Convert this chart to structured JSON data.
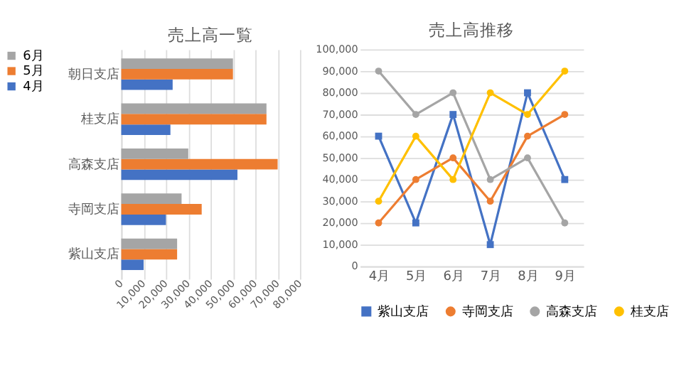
{
  "chart_data": [
    {
      "type": "bar",
      "orientation": "horizontal",
      "title": "売上高一覧",
      "categories": [
        "朝日支店",
        "桂支店",
        "高森支店",
        "寺岡支店",
        "紫山支店"
      ],
      "series": [
        {
          "name": "4月",
          "color": "#4472c4",
          "values": [
            23000,
            22000,
            52000,
            20000,
            10000
          ]
        },
        {
          "name": "5月",
          "color": "#ed7d31",
          "values": [
            50000,
            65000,
            70000,
            36000,
            25000
          ]
        },
        {
          "name": "6月",
          "color": "#a5a5a5",
          "values": [
            50000,
            65000,
            30000,
            27000,
            25000
          ]
        }
      ],
      "xlim": [
        0,
        80000
      ],
      "xticks": [
        {
          "value": 0,
          "label": "0"
        },
        {
          "value": 10000,
          "label": "10,000"
        },
        {
          "value": 20000,
          "label": "20,000"
        },
        {
          "value": 30000,
          "label": "30,000"
        },
        {
          "value": 40000,
          "label": "40,000"
        },
        {
          "value": 50000,
          "label": "50,000"
        },
        {
          "value": 60000,
          "label": "60,000"
        },
        {
          "value": 70000,
          "label": "70,000"
        },
        {
          "value": 80000,
          "label": "80,000"
        }
      ],
      "grid": "x",
      "legend": "left"
    },
    {
      "type": "line",
      "title": "売上高推移",
      "categories": [
        "4月",
        "5月",
        "6月",
        "7月",
        "8月",
        "9月"
      ],
      "series": [
        {
          "name": "紫山支店",
          "color": "#4472c4",
          "marker": "square",
          "values": [
            60000,
            20000,
            70000,
            10000,
            80000,
            40000
          ]
        },
        {
          "name": "寺岡支店",
          "color": "#ed7d31",
          "marker": "circle",
          "values": [
            20000,
            40000,
            50000,
            30000,
            60000,
            70000
          ]
        },
        {
          "name": "高森支店",
          "color": "#a5a5a5",
          "marker": "circle",
          "values": [
            90000,
            70000,
            80000,
            40000,
            50000,
            20000
          ]
        },
        {
          "name": "桂支店",
          "color": "#ffc000",
          "marker": "circle",
          "values": [
            30000,
            60000,
            40000,
            80000,
            70000,
            90000
          ]
        }
      ],
      "ylim": [
        0,
        100000
      ],
      "yticks": [
        {
          "value": 0,
          "label": "0"
        },
        {
          "value": 10000,
          "label": "10,000"
        },
        {
          "value": 20000,
          "label": "20,000"
        },
        {
          "value": 30000,
          "label": "30,000"
        },
        {
          "value": 40000,
          "label": "40,000"
        },
        {
          "value": 50000,
          "label": "50,000"
        },
        {
          "value": 60000,
          "label": "60,000"
        },
        {
          "value": 70000,
          "label": "70,000"
        },
        {
          "value": 80000,
          "label": "80,000"
        },
        {
          "value": 90000,
          "label": "90,000"
        },
        {
          "value": 100000,
          "label": "100,000"
        }
      ],
      "grid": "y",
      "legend": "bottom",
      "line_style": "solid"
    }
  ]
}
